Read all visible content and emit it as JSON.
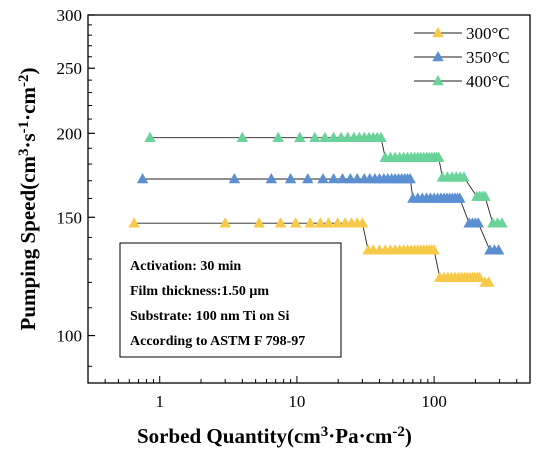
{
  "chart_data": {
    "type": "line",
    "x_scale": "log",
    "y_scale": "log",
    "xlim": [
      0.3,
      500
    ],
    "ylim": [
      85,
      300
    ],
    "xlabel": {
      "main": "Sorbed Quantity",
      "unit_prefix": "(cm",
      "unit_sup": "3",
      "unit_mid": "·Pa·cm",
      "unit_sup2": "-2",
      "unit_end": ")"
    },
    "ylabel": {
      "main": "Pumping Speed",
      "unit_prefix": "(cm",
      "unit_sup": "3",
      "unit_mid": "·s",
      "unit_sup2": "-1",
      "unit_mid2": "·cm",
      "unit_sup3": "-2",
      "unit_end": ")"
    },
    "x_ticks": [
      {
        "value": 1,
        "label": "1"
      },
      {
        "value": 10,
        "label": "10"
      },
      {
        "value": 100,
        "label": "100"
      }
    ],
    "y_ticks": [
      {
        "value": 100,
        "label": "100"
      },
      {
        "value": 150,
        "label": "150"
      },
      {
        "value": 200,
        "label": "200"
      },
      {
        "value": 250,
        "label": "250"
      },
      {
        "value": 300,
        "label": "300"
      }
    ],
    "legend_position": "top-right",
    "series": [
      {
        "name": "300°C",
        "color": "#f7c948",
        "points": [
          [
            0.65,
            147
          ],
          [
            3.0,
            147
          ],
          [
            5.3,
            147
          ],
          [
            7.6,
            147
          ],
          [
            9.8,
            147
          ],
          [
            12.5,
            147
          ],
          [
            14.8,
            147
          ],
          [
            17.0,
            147
          ],
          [
            19.8,
            147
          ],
          [
            22.5,
            147
          ],
          [
            25.0,
            147
          ],
          [
            27.5,
            147
          ],
          [
            30.0,
            147
          ],
          [
            33,
            134
          ],
          [
            36,
            134
          ],
          [
            40,
            134
          ],
          [
            44,
            134
          ],
          [
            48,
            134
          ],
          [
            52,
            134
          ],
          [
            56,
            134
          ],
          [
            60,
            134
          ],
          [
            64,
            134
          ],
          [
            68,
            134
          ],
          [
            72,
            134
          ],
          [
            76,
            134
          ],
          [
            80,
            134
          ],
          [
            84,
            134
          ],
          [
            88,
            134
          ],
          [
            92,
            134
          ],
          [
            96,
            134
          ],
          [
            100,
            134
          ],
          [
            110,
            122
          ],
          [
            118,
            122
          ],
          [
            126,
            122
          ],
          [
            134,
            122
          ],
          [
            142,
            122
          ],
          [
            150,
            122
          ],
          [
            158,
            122
          ],
          [
            166,
            122
          ],
          [
            174,
            122
          ],
          [
            182,
            122
          ],
          [
            190,
            122
          ],
          [
            198,
            122
          ],
          [
            206,
            122
          ],
          [
            214,
            122
          ],
          [
            235,
            120
          ],
          [
            250,
            120
          ]
        ]
      },
      {
        "name": "350°C",
        "color": "#5b8fd1",
        "points": [
          [
            0.75,
            171
          ],
          [
            3.5,
            171
          ],
          [
            6.5,
            171
          ],
          [
            9.0,
            171
          ],
          [
            12.0,
            171
          ],
          [
            15.5,
            171
          ],
          [
            18.5,
            171
          ],
          [
            21.5,
            171
          ],
          [
            24.5,
            171
          ],
          [
            27.5,
            171
          ],
          [
            31.0,
            171
          ],
          [
            34.0,
            171
          ],
          [
            37.0,
            171
          ],
          [
            40.0,
            171
          ],
          [
            43.0,
            171
          ],
          [
            46.0,
            171
          ],
          [
            49.0,
            171
          ],
          [
            52.0,
            171
          ],
          [
            55.0,
            171
          ],
          [
            58.0,
            171
          ],
          [
            61.0,
            171
          ],
          [
            64.0,
            171
          ],
          [
            67.0,
            171
          ],
          [
            70,
            160
          ],
          [
            76,
            160
          ],
          [
            82,
            160
          ],
          [
            88,
            160
          ],
          [
            94,
            160
          ],
          [
            100,
            160
          ],
          [
            106,
            160
          ],
          [
            112,
            160
          ],
          [
            118,
            160
          ],
          [
            124,
            160
          ],
          [
            130,
            160
          ],
          [
            136,
            160
          ],
          [
            142,
            160
          ],
          [
            148,
            160
          ],
          [
            154,
            160
          ],
          [
            180,
            147
          ],
          [
            190,
            147
          ],
          [
            200,
            147
          ],
          [
            210,
            147
          ],
          [
            255,
            134
          ],
          [
            275,
            134
          ],
          [
            295,
            134
          ]
        ]
      },
      {
        "name": "400°C",
        "color": "#6ad39a",
        "points": [
          [
            0.85,
            197
          ],
          [
            4.0,
            197
          ],
          [
            7.3,
            197
          ],
          [
            10.5,
            197
          ],
          [
            13.5,
            197
          ],
          [
            16.0,
            197
          ],
          [
            18.5,
            197
          ],
          [
            21.0,
            197
          ],
          [
            23.5,
            197
          ],
          [
            26.0,
            197
          ],
          [
            28.5,
            197
          ],
          [
            31.0,
            197
          ],
          [
            33.5,
            197
          ],
          [
            36.0,
            197
          ],
          [
            38.5,
            197
          ],
          [
            41.0,
            197
          ],
          [
            44,
            184
          ],
          [
            48,
            184
          ],
          [
            52,
            184
          ],
          [
            56,
            184
          ],
          [
            60,
            184
          ],
          [
            64,
            184
          ],
          [
            68,
            184
          ],
          [
            72,
            184
          ],
          [
            76,
            184
          ],
          [
            80,
            184
          ],
          [
            84,
            184
          ],
          [
            88,
            184
          ],
          [
            92,
            184
          ],
          [
            96,
            184
          ],
          [
            100,
            184
          ],
          [
            104,
            184
          ],
          [
            108,
            184
          ],
          [
            115,
            172
          ],
          [
            125,
            172
          ],
          [
            135,
            172
          ],
          [
            145,
            172
          ],
          [
            155,
            172
          ],
          [
            165,
            172
          ],
          [
            205,
            161
          ],
          [
            215,
            161
          ],
          [
            225,
            161
          ],
          [
            235,
            161
          ],
          [
            268,
            147
          ],
          [
            290,
            147
          ],
          [
            312,
            147
          ]
        ]
      }
    ],
    "annotation_lines": [
      "Activation: 30 min",
      "Film thickness:1.50 μm",
      "Substrate: 100 nm Ti on Si",
      "According to ASTM F 798-97"
    ]
  }
}
